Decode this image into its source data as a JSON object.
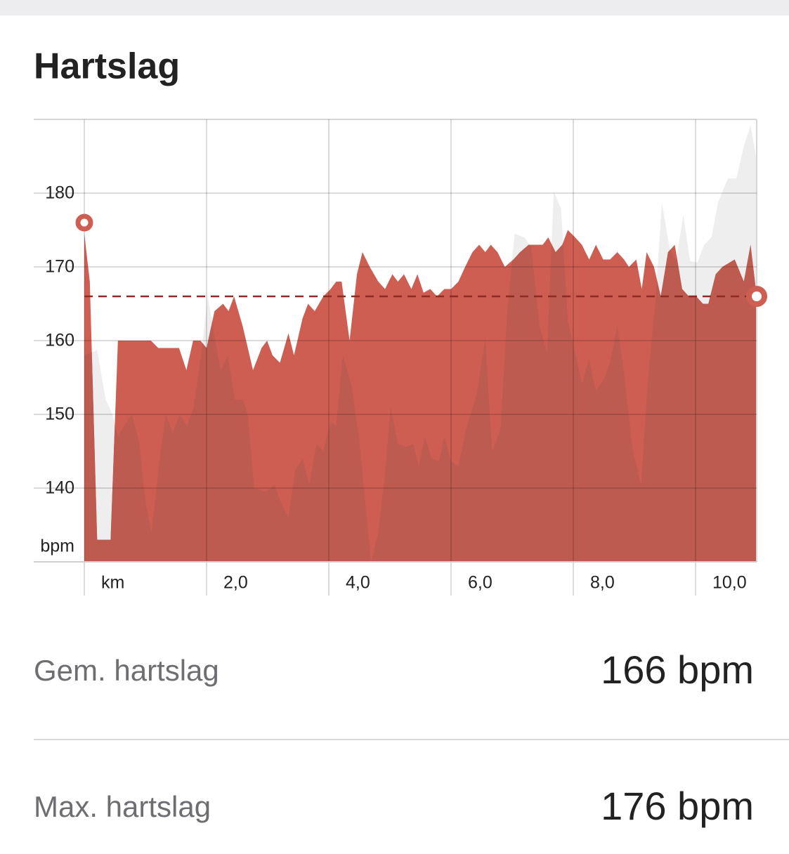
{
  "header": {
    "title": "Hartslag"
  },
  "chart_data": {
    "type": "area",
    "y_label": "bpm",
    "x": [
      0,
      0.09,
      0.21,
      0.43,
      0.55,
      1.09,
      1.21,
      1.55,
      1.67,
      1.78,
      1.9,
      2.0,
      2.13,
      2.27,
      2.36,
      2.45,
      2.59,
      2.76,
      2.9,
      2.99,
      3.08,
      3.2,
      3.34,
      3.43,
      3.57,
      3.66,
      3.77,
      3.91,
      4.03,
      4.12,
      4.21,
      4.34,
      4.46,
      4.55,
      4.67,
      4.81,
      4.92,
      5.04,
      5.13,
      5.23,
      5.35,
      5.45,
      5.55,
      5.66,
      5.77,
      5.89,
      6.0,
      6.12,
      6.23,
      6.35,
      6.46,
      6.56,
      6.65,
      6.76,
      6.88,
      7.02,
      7.13,
      7.27,
      7.5,
      7.59,
      7.71,
      7.82,
      7.91,
      8.03,
      8.14,
      8.26,
      8.37,
      8.49,
      8.6,
      8.72,
      8.83,
      8.91,
      9.03,
      9.12,
      9.2,
      9.32,
      9.43,
      9.55,
      9.66,
      9.78,
      9.89,
      10.01,
      10.12,
      10.21,
      10.33,
      10.44,
      10.64,
      10.79,
      10.9,
      11.0
    ],
    "series": [
      {
        "color": "#cf5e52",
        "values": [
          174.5,
          168,
          133,
          133,
          160,
          160,
          159,
          159,
          156,
          160,
          160,
          159,
          164,
          165,
          164,
          166,
          162,
          156,
          159,
          160,
          158,
          157,
          161,
          158,
          163,
          165,
          164,
          166,
          167,
          168,
          168,
          160,
          169,
          172,
          170,
          168,
          167,
          169,
          168,
          169,
          167,
          169,
          166.5,
          167,
          166,
          167,
          167,
          168,
          170,
          172,
          173,
          172,
          173,
          172,
          170,
          171,
          172,
          173,
          173,
          174,
          172,
          173,
          175,
          174,
          173,
          171,
          173,
          171,
          171,
          172,
          171,
          170,
          171,
          167,
          172,
          170,
          166,
          172,
          173,
          167,
          166,
          166,
          165,
          165,
          169,
          170,
          171,
          168,
          173,
          166
        ]
      },
      {
        "color": "#eeeeee",
        "overlap_color": "#bd5b50",
        "x": [
          0,
          0.12,
          0.21,
          0.35,
          0.46,
          0.55,
          0.69,
          0.78,
          0.9,
          1.01,
          1.1,
          1.22,
          1.33,
          1.45,
          1.56,
          1.68,
          1.79,
          1.91,
          2.02,
          2.12,
          2.23,
          2.35,
          2.46,
          2.6,
          2.67,
          2.78,
          2.97,
          3.11,
          3.22,
          3.34,
          3.45,
          3.57,
          3.68,
          3.8,
          3.91,
          4.03,
          4.12,
          4.23,
          4.37,
          4.49,
          4.58,
          4.69,
          4.81,
          4.92,
          5.01,
          5.13,
          5.27,
          5.38,
          5.47,
          5.57,
          5.68,
          5.8,
          5.89,
          6.0,
          6.12,
          6.26,
          6.42,
          6.56,
          6.67,
          6.81,
          6.92,
          7.04,
          7.2,
          7.31,
          7.45,
          7.57,
          7.68,
          7.8,
          7.91,
          8.03,
          8.14,
          8.26,
          8.37,
          8.49,
          8.6,
          8.72,
          8.83,
          8.97,
          9.11,
          9.22,
          9.34,
          9.45,
          9.57,
          9.68,
          9.8,
          9.91,
          10.03,
          10.14,
          10.26,
          10.37,
          10.53,
          10.67,
          10.79,
          10.9,
          11.0
        ],
        "values": [
          158,
          158.4,
          158.7,
          152,
          150,
          147,
          149,
          150,
          146,
          137.6,
          134,
          143,
          150,
          147.5,
          150,
          148.4,
          151,
          158,
          166,
          161,
          156,
          158,
          152,
          152,
          150,
          140,
          139.5,
          140.4,
          138,
          136,
          142.5,
          144,
          140.5,
          146,
          145,
          149,
          148.5,
          158,
          154,
          147,
          139.5,
          130,
          134,
          142,
          151,
          146,
          145.6,
          146,
          143,
          147,
          144,
          143.6,
          147,
          143.6,
          143,
          148.5,
          152.7,
          160.3,
          145,
          148,
          164,
          174.5,
          174,
          172.7,
          161.8,
          158.4,
          180.2,
          177.9,
          162.7,
          158.4,
          154.2,
          157.5,
          153.2,
          154.6,
          157,
          162,
          155.6,
          145.2,
          140.4,
          154.6,
          165,
          178.7,
          172.7,
          170.8,
          177,
          170.8,
          170.6,
          173,
          174,
          178.8,
          182,
          182,
          186.4,
          189.2,
          184.5
        ]
      }
    ],
    "xlim": [
      0,
      11.0
    ],
    "xticks": [
      {
        "value": 0,
        "label": "km"
      },
      {
        "value": 2,
        "label": "2,0"
      },
      {
        "value": 4,
        "label": "4,0"
      },
      {
        "value": 6,
        "label": "6,0"
      },
      {
        "value": 8,
        "label": "8,0"
      },
      {
        "value": 10,
        "label": "10,0"
      }
    ],
    "ylim": [
      130,
      190
    ],
    "yticks": [
      140,
      150,
      160,
      170,
      180
    ],
    "grid": true
  },
  "stats": [
    {
      "label": "Gem. hartslag",
      "value": 166,
      "value_label": "166 bpm"
    },
    {
      "label": "Max. hartslag",
      "value": 176,
      "value_label": "176 bpm"
    }
  ]
}
